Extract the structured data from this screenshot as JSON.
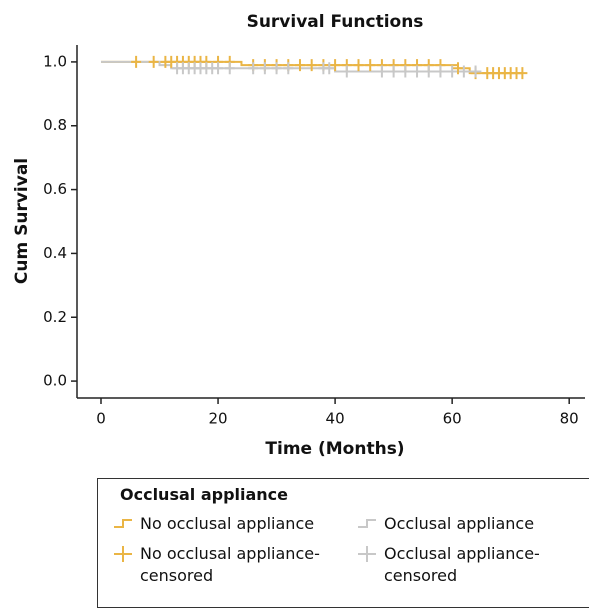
{
  "chart_data": {
    "type": "survival",
    "title": "Survival Functions",
    "x_label": "Time (Months)",
    "y_label": "Cum Survival",
    "xlim": [
      -4.1,
      82.7
    ],
    "ylim": [
      -0.053,
      1.053
    ],
    "xticks": [
      0,
      20,
      40,
      60,
      80
    ],
    "yticks": [
      {
        "value": 0,
        "label": "0.0"
      },
      {
        "value": 0.2,
        "label": "0.2"
      },
      {
        "value": 0.4,
        "label": "0.4"
      },
      {
        "value": 0.6,
        "label": "0.6"
      },
      {
        "value": 0.8,
        "label": "0.8"
      },
      {
        "value": 1,
        "label": "1.0"
      }
    ],
    "legend_title": "Occlusal appliance",
    "series": [
      {
        "name": "No occlusal appliance",
        "color": "#eab545",
        "marker": "step",
        "x": [
          0,
          24,
          61,
          63,
          72
        ],
        "values": [
          1.0,
          0.99,
          0.98,
          0.965,
          0.965
        ]
      },
      {
        "name": "Occlusal appliance",
        "color": "#c8c8c8",
        "marker": "step",
        "x": [
          0,
          10,
          12,
          40,
          65
        ],
        "values": [
          1.0,
          0.99,
          0.98,
          0.97,
          0.97
        ]
      },
      {
        "name": "No occlusal appliance-censored",
        "color": "#eab545",
        "marker": "plus",
        "x": [
          6,
          9,
          11,
          12,
          13,
          14,
          15,
          16,
          17,
          18,
          20,
          22,
          26,
          28,
          30,
          32,
          34,
          36,
          38,
          40,
          42,
          44,
          46,
          48,
          50,
          52,
          54,
          56,
          58,
          61,
          64,
          66,
          67,
          68,
          69,
          70,
          71,
          72
        ],
        "values": [
          1.0,
          1.0,
          1.0,
          1.0,
          1.0,
          1.0,
          1.0,
          1.0,
          1.0,
          1.0,
          1.0,
          1.0,
          0.99,
          0.99,
          0.99,
          0.99,
          0.99,
          0.99,
          0.99,
          0.99,
          0.99,
          0.99,
          0.99,
          0.99,
          0.99,
          0.99,
          0.99,
          0.99,
          0.99,
          0.98,
          0.965,
          0.965,
          0.965,
          0.965,
          0.965,
          0.965,
          0.965,
          0.965
        ]
      },
      {
        "name": "Occlusal appliance-censored",
        "color": "#c8c8c8",
        "marker": "plus",
        "x": [
          13,
          14,
          15,
          16,
          17,
          18,
          19,
          20,
          22,
          26,
          28,
          30,
          32,
          38,
          39,
          42,
          48,
          50,
          52,
          54,
          56,
          58,
          60,
          62,
          64
        ],
        "values": [
          0.98,
          0.98,
          0.98,
          0.98,
          0.98,
          0.98,
          0.98,
          0.98,
          0.98,
          0.98,
          0.98,
          0.98,
          0.98,
          0.98,
          0.98,
          0.97,
          0.97,
          0.97,
          0.97,
          0.97,
          0.97,
          0.97,
          0.97,
          0.97,
          0.97
        ]
      }
    ]
  }
}
